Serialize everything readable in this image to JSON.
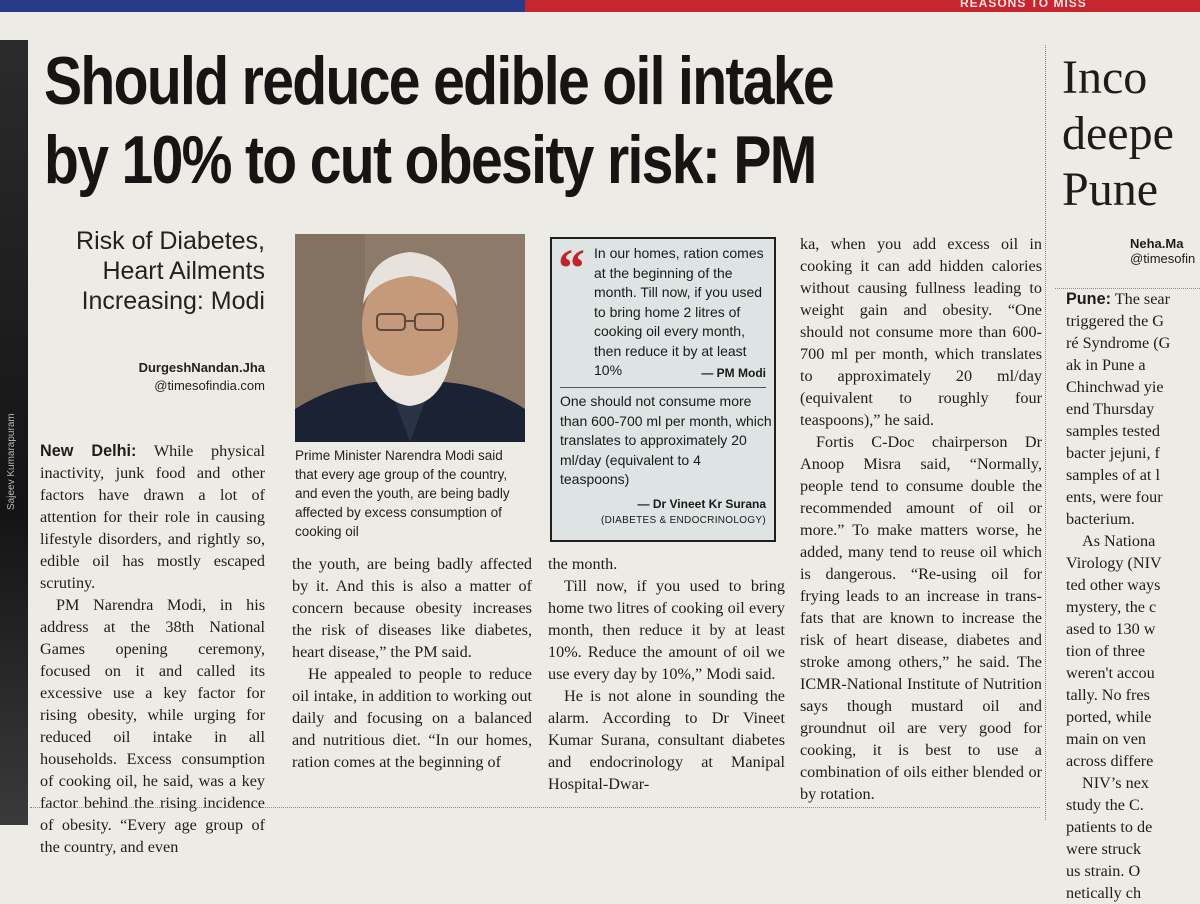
{
  "headline": "Should reduce edible oil intake by 10% to cut obesity risk: PM",
  "subhead": "Risk of Diabetes, Heart Ailments Increasing: Modi",
  "byline": {
    "name": "DurgeshNandan.Jha",
    "handle": "@timesofindia.com"
  },
  "photo": {
    "credit": "Sajeev Kumarapuram",
    "caption": "Prime Minister Narendra Modi said that every age group of the country, and even the youth, are being badly affected by excess consumption of cooking oil"
  },
  "quote_box": {
    "quote1": "In our homes, ration comes at the beginning of the month. Till now, if you used to bring home 2 litres of cooking oil every month, then reduce it by at least 10%",
    "attribution1": "— PM Modi",
    "quote2": "One should not consume more than 600-700 ml per month, which translates to approximately 20 ml/day (equivalent to 4 teaspoons)",
    "attribution2": "— Dr Vineet Kr Surana",
    "attribution2_sub": "(DIABETES & ENDOCRINOLOGY)"
  },
  "article": {
    "dateline": "New Delhi:",
    "p1": "While physical inactivity, junk food and other factors have drawn a lot of attention for their role in causing lifestyle disorders, and rightly so, edible oil has mostly escaped scrutiny.",
    "p2": "PM Narendra Modi, in his address at the 38th National Games opening ceremony, focused on it and called its excessive use a key factor for rising obesity, while urging for reduced oil intake in all households. Excess consumption of cooking oil, he said, was a key factor behind the rising incidence of obesity. “Every age group of the country, and even",
    "p3": "the youth, are being badly affected by it. And this is also a matter of concern because obesity increases the risk of diseases like diabetes, heart disease,” the PM said.",
    "p4": "He appealed to people to reduce oil intake, in addition to working out daily and focusing on a balanced and nutritious diet. “In our homes, ration comes at the beginning of",
    "p5": "the month.",
    "p6": "Till now, if you used to bring home two litres of cooking oil every month, then reduce it by at least 10%. Reduce the amount of oil we use every day by 10%,” Modi said.",
    "p7": "He is not alone in sounding the alarm. According to Dr Vineet Kumar Surana, consultant diabetes and endocrinology at Manipal Hospital-Dwar-",
    "p8": "ka, when you add excess oil in cooking it can add hidden calories without causing fullness leading to weight gain and obesity. “One should not consume more than 600-700 ml per month, which translates to approximately 20 ml/day (equivalent to roughly four teaspoons),” he said.",
    "p9": "Fortis C-Doc chairperson Dr Anoop Misra said, “Normally, people tend to consume double the recommended amount of oil or more.” To make matters worse, he added, many tend to reuse oil which is dangerous. “Re-using oil for frying leads to an increase in trans-fats that are known to increase the risk of heart disease, diabetes and stroke among others,” he said. The ICMR-National Institute of Nutrition says though mustard oil and groundnut oil are very good for cooking, it is best to use a combination of oils either blended or by rotation."
  },
  "adjacent_story": {
    "headline_lines": [
      "Inco",
      "deepe",
      "Pune"
    ],
    "byline_name": "Neha.Ma",
    "byline_handle": "@timesofin",
    "lines": [
      "Pune: The sear",
      "triggered the G",
      "ré Syndrome (G",
      "ak in Pune a",
      "Chinchwad yie",
      "end Thursday",
      "samples tested",
      "bacter jejuni, f",
      "samples of at l",
      "ents, were four",
      "bacterium.",
      "As Nationa",
      "Virology (NIV",
      "ted other ways",
      "mystery, the c",
      "ased to 130 w",
      "tion of three",
      "weren't accou",
      "tally. No fres",
      "ported, while",
      "main on ven",
      "across differe",
      "NIV’s nex",
      "study the C.",
      "patients to de",
      "were struck",
      "us strain. O",
      "netically ch"
    ]
  },
  "topbar_text": "REASONS TO MISS"
}
